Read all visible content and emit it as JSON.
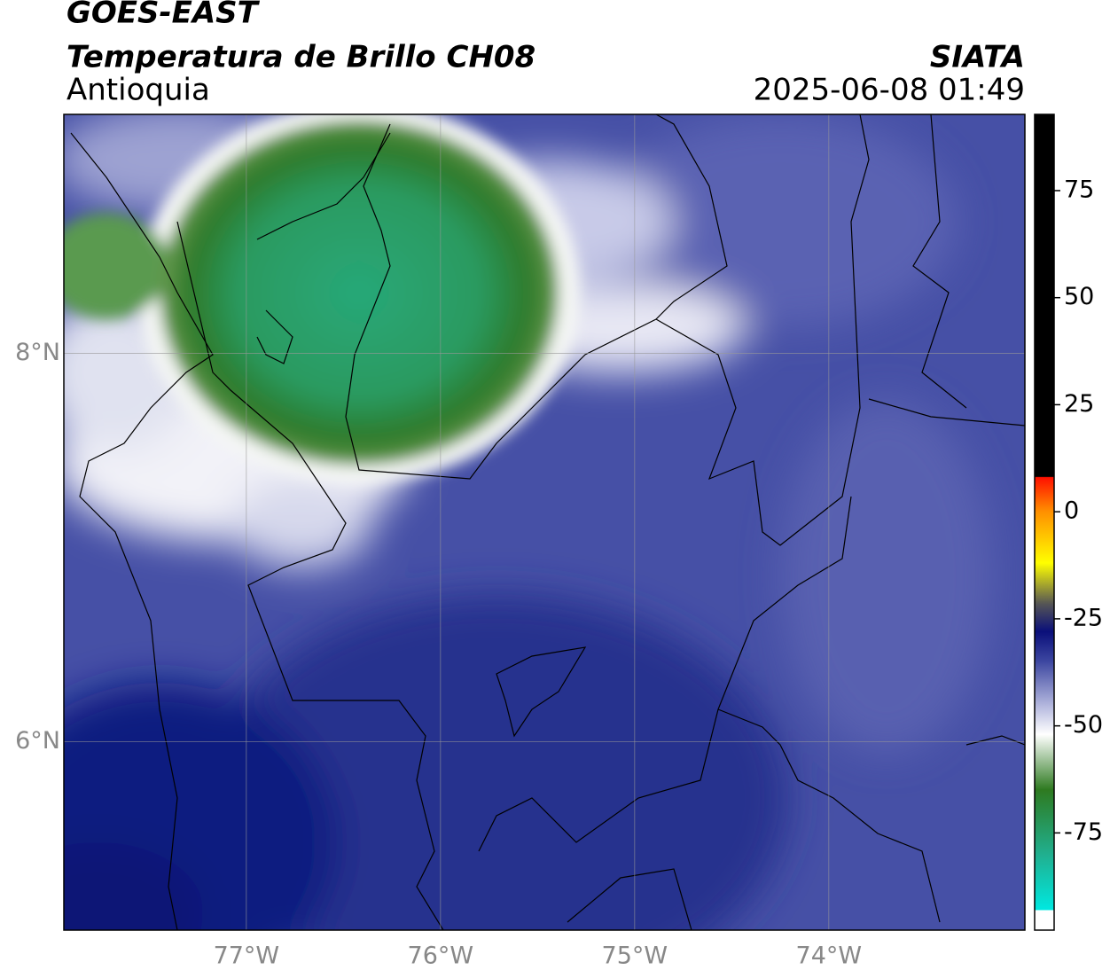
{
  "header": {
    "title": "GOES-EAST",
    "subtitle": "Temperatura de Brillo CH08",
    "region": "Antioquia",
    "source": "SIATA",
    "datetime": "2025-06-08 01:49"
  },
  "map": {
    "lonlim": [
      -77.94,
      -72.99
    ],
    "latlim": [
      5.03,
      9.23
    ],
    "lonticks": [
      {
        "value": -77,
        "label": "77°W"
      },
      {
        "value": -76,
        "label": "76°W"
      },
      {
        "value": -75,
        "label": "75°W"
      },
      {
        "value": -74,
        "label": "74°W"
      }
    ],
    "latticks": [
      {
        "value": 8,
        "label": "8°N"
      },
      {
        "value": 6,
        "label": "6°N"
      }
    ]
  },
  "colorbar": {
    "lim": [
      -97.7,
      92.8
    ],
    "ticks": [
      -75,
      -50,
      -25,
      0,
      25,
      50,
      75
    ]
  }
}
